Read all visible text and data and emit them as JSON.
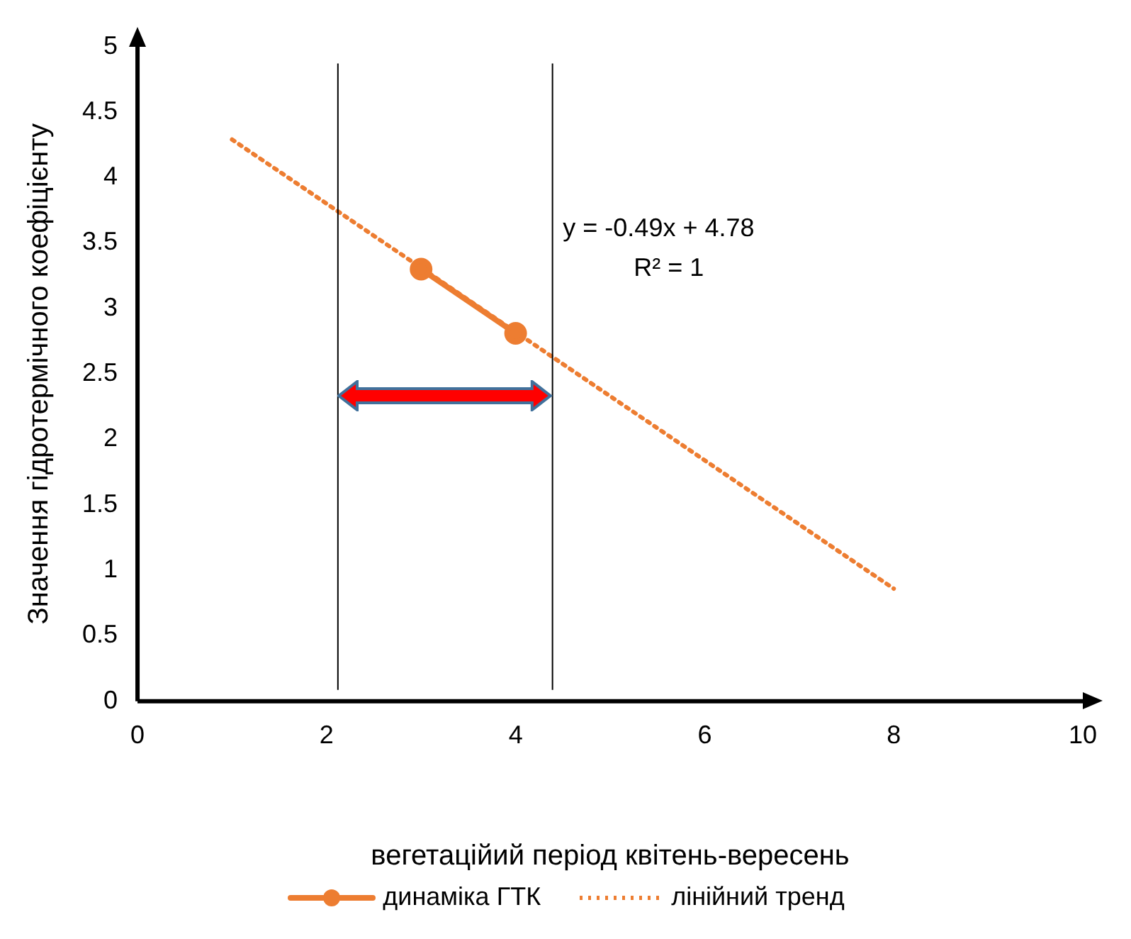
{
  "chart_data": {
    "type": "line",
    "xlabel": "вегетаційий період квітень-вересень",
    "ylabel": "Значення гідротермічного коефіцієнту",
    "xlim": [
      0,
      10
    ],
    "xticks": [
      0,
      2,
      4,
      6,
      8,
      10
    ],
    "ylim": [
      0,
      5
    ],
    "yticks": [
      0,
      0.5,
      1,
      1.5,
      2,
      2.5,
      3,
      3.5,
      4,
      4.5,
      5
    ],
    "series": [
      {
        "name": "динаміка ГТК",
        "color": "#ed7d31",
        "x": [
          3,
          4
        ],
        "values": [
          3.3,
          2.81
        ],
        "marker": "circle",
        "line_style": "solid"
      },
      {
        "name": "лінійний тренд",
        "color": "#ed7d31",
        "x": [
          1,
          8
        ],
        "values": [
          4.29,
          0.86
        ],
        "marker": "none",
        "line_style": "dotted"
      }
    ],
    "ref_lines": [
      {
        "axis": "x",
        "value": 2.12
      },
      {
        "axis": "x",
        "value": 4.39
      }
    ],
    "annotations": [
      "y = -0.49x + 4.78",
      "R² = 1"
    ],
    "grid": false,
    "legend": "bottom"
  }
}
